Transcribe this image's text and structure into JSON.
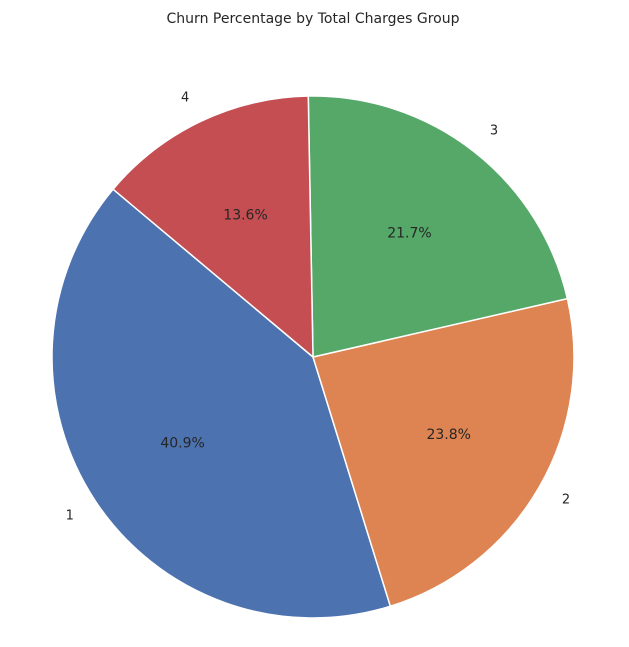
{
  "chart_data": {
    "type": "pie",
    "title": "Churn Percentage by Total Charges Group",
    "categories": [
      "1",
      "2",
      "3",
      "4"
    ],
    "values": [
      40.9,
      23.8,
      21.7,
      13.6
    ],
    "value_labels": [
      "40.9%",
      "23.8%",
      "21.7%",
      "13.6%"
    ],
    "colors": [
      "#4c72b0",
      "#dd8452",
      "#55a868",
      "#c44e52"
    ],
    "start_angle": 140,
    "direction": "counterclockwise",
    "legend": "none"
  }
}
